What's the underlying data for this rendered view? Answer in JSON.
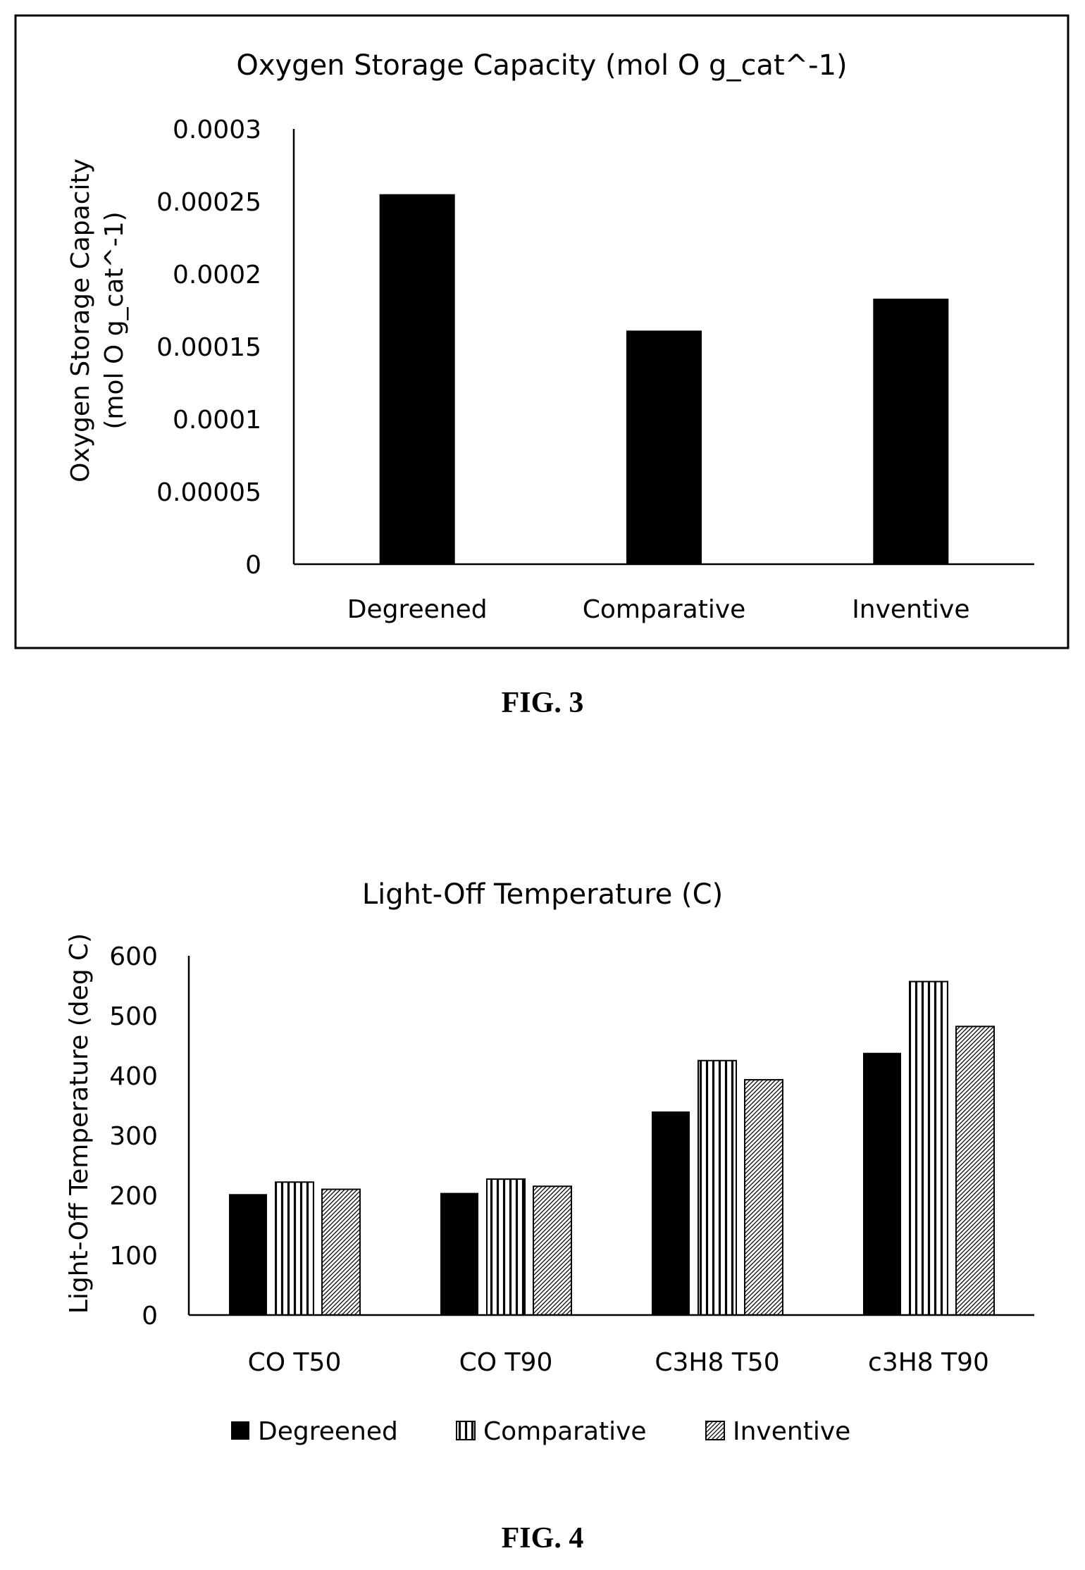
{
  "figures": [
    {
      "caption": "FIG. 3"
    },
    {
      "caption": "FIG. 4"
    }
  ],
  "chart_data": [
    {
      "type": "bar",
      "title": "Oxygen Storage Capacity (mol O g_cat^-1)",
      "ylabel_lines": [
        "Oxygen Storage Capacity",
        "(mol O g_cat^-1)"
      ],
      "xlabel": "",
      "categories": [
        "Degreened",
        "Comparative",
        "Inventive"
      ],
      "values": [
        0.000255,
        0.000161,
        0.000183
      ],
      "ylim": [
        0,
        0.0003
      ],
      "yticks": [
        0,
        5e-05,
        0.0001,
        0.00015,
        0.0002,
        0.00025,
        0.0003
      ],
      "ytick_labels": [
        "0",
        "0.00005",
        "0.0001",
        "0.00015",
        "0.0002",
        "0.00025",
        "0.0003"
      ],
      "legend": "none",
      "grid": false,
      "colors": {
        "bar": "#000000",
        "axis": "#000000",
        "frame": "#000000"
      }
    },
    {
      "type": "bar",
      "title": "Light-Off Temperature (C)",
      "ylabel": "Light-Off Temperature (deg C)",
      "xlabel": "",
      "categories": [
        "CO T50",
        "CO T90",
        "C3H8 T50",
        "c3H8 T90"
      ],
      "series": [
        {
          "name": "Degreened",
          "values": [
            202,
            204,
            340,
            438
          ],
          "pattern": "solid"
        },
        {
          "name": "Comparative",
          "values": [
            222,
            227,
            425,
            557
          ],
          "pattern": "vertical-lines"
        },
        {
          "name": "Inventive",
          "values": [
            210,
            215,
            393,
            482
          ],
          "pattern": "diagonal-hatch"
        }
      ],
      "ylim": [
        0,
        600
      ],
      "yticks": [
        0,
        100,
        200,
        300,
        400,
        500,
        600
      ],
      "ytick_labels": [
        "0",
        "100",
        "200",
        "300",
        "400",
        "500",
        "600"
      ],
      "legend": "bottom",
      "grid": false,
      "colors": {
        "solid": "#000000",
        "stroke": "#000000",
        "background": "#ffffff"
      }
    }
  ]
}
